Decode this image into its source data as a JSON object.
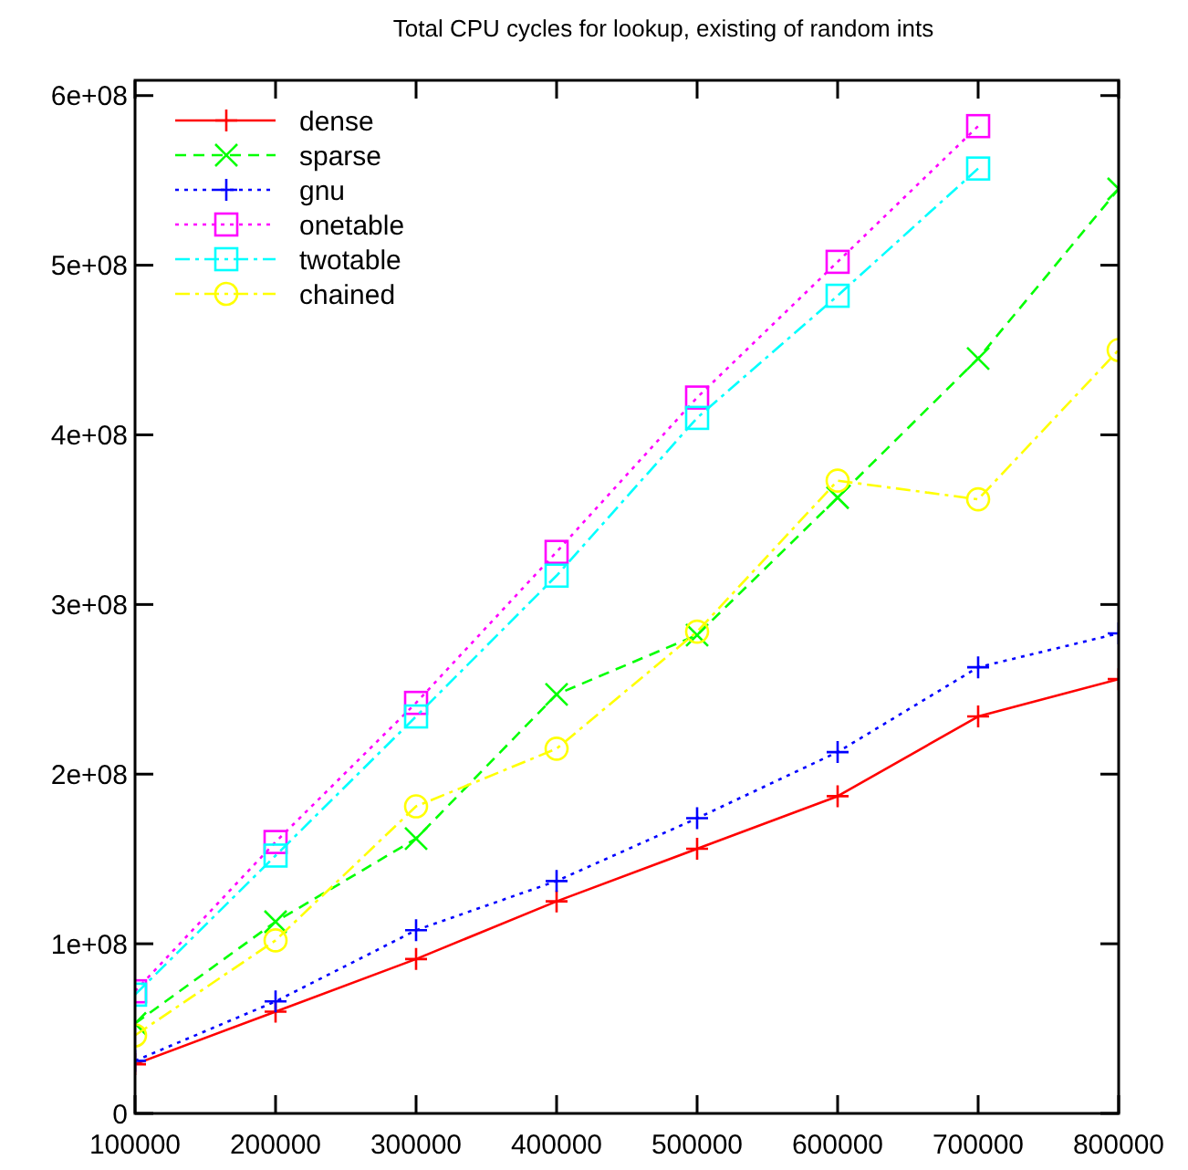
{
  "chart_data": {
    "type": "line",
    "title": "Total CPU cycles for lookup, existing of random ints",
    "x": [
      100000,
      200000,
      300000,
      400000,
      500000,
      600000,
      700000,
      800000
    ],
    "xlim": [
      100000,
      800000
    ],
    "xticks": [
      100000,
      200000,
      300000,
      400000,
      500000,
      600000,
      700000,
      800000
    ],
    "ylim": [
      0,
      609000000
    ],
    "yticks": [
      0,
      {
        "value": 100000000,
        "label": "1e+08"
      },
      {
        "value": 200000000,
        "label": "2e+08"
      },
      {
        "value": 300000000,
        "label": "3e+08"
      },
      {
        "value": 400000000,
        "label": "4e+08"
      },
      {
        "value": 500000000,
        "label": "5e+08"
      },
      {
        "value": 600000000,
        "label": "6e+08"
      }
    ],
    "grid": false,
    "legend": "top left",
    "series": [
      {
        "name": "dense",
        "color": "#ff0000",
        "line_style": "solid",
        "marker": "cross",
        "values": [
          29000000,
          60000000,
          91000000,
          125000000,
          156000000,
          187000000,
          234000000,
          256000000
        ]
      },
      {
        "name": "sparse",
        "color": "#00ff00",
        "line_style": "dashed",
        "marker": "x",
        "values": [
          53000000,
          113000000,
          162000000,
          247000000,
          282000000,
          363000000,
          445000000,
          545000000
        ]
      },
      {
        "name": "gnu",
        "color": "#0000ff",
        "line_style": "dotted",
        "marker": "cross",
        "values": [
          31000000,
          66000000,
          108000000,
          137000000,
          174000000,
          213000000,
          263000000,
          283000000
        ]
      },
      {
        "name": "onetable",
        "color": "#ff00ff",
        "line_style": "dotted",
        "marker": "square",
        "values": [
          72000000,
          160000000,
          242000000,
          331000000,
          422000000,
          502000000,
          582000000,
          null
        ]
      },
      {
        "name": "twotable",
        "color": "#00ffff",
        "line_style": "dashdot",
        "marker": "square",
        "values": [
          70000000,
          152000000,
          234000000,
          317000000,
          410000000,
          482000000,
          557000000,
          null
        ]
      },
      {
        "name": "chained",
        "color": "#ffff00",
        "line_style": "dashdot",
        "marker": "circle",
        "values": [
          46000000,
          102000000,
          181000000,
          215000000,
          284000000,
          373000000,
          362000000,
          450000000
        ]
      }
    ]
  }
}
